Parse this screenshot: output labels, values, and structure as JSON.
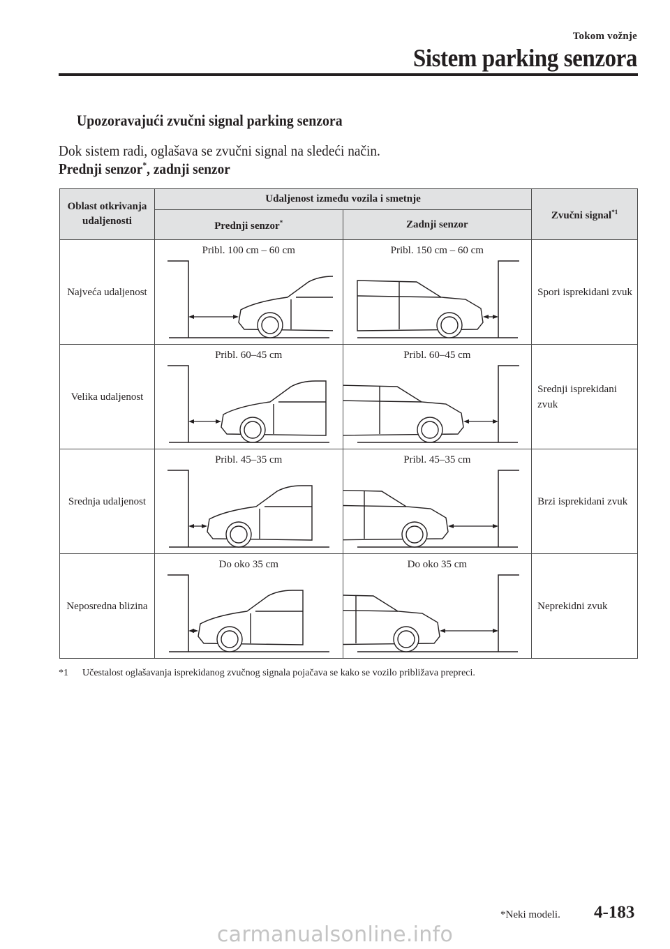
{
  "header": {
    "section": "Tokom vožnje",
    "title": "Sistem parking senzora"
  },
  "subheading": "Upozoravajući zvučni signal parking senzora",
  "intro": "Dok sistem radi, oglašava se zvučni signal na sledeći način.",
  "table_title": {
    "text": "Prednji senzor",
    "mark": "*",
    "rest": ", zadnji senzor"
  },
  "table": {
    "headers": {
      "area": "Oblast otkrivanja udaljenosti",
      "distance": "Udaljenost između vozila i smetnje",
      "front": "Prednji senzor",
      "front_mark": "*",
      "rear": "Zadnji senzor",
      "signal": "Zvučni signal",
      "signal_mark": "*1"
    },
    "rows": [
      {
        "area": "Najveća udaljenost",
        "front": "Pribl. 100 cm – 60 cm",
        "rear": "Pribl. 150 cm – 60 cm",
        "signal": "Spori isprekidani zvuk"
      },
      {
        "area": "Velika udaljenost",
        "front": "Pribl. 60–45 cm",
        "rear": "Pribl. 60–45 cm",
        "signal": "Srednji isprekidani zvuk"
      },
      {
        "area": "Srednja udaljenost",
        "front": "Pribl. 45–35 cm",
        "rear": "Pribl. 45–35 cm",
        "signal": "Brzi isprekidani zvuk"
      },
      {
        "area": "Neposredna blizina",
        "front": "Do oko 35 cm",
        "rear": "Do oko 35 cm",
        "signal": "Neprekidni zvuk"
      }
    ]
  },
  "footnote": {
    "mark": "*1",
    "text": "Učestalost oglašavanja isprekidanog zvučnog signala pojačava se kako se vozilo približava prepreci."
  },
  "footer": {
    "models_note": "*Neki modeli.",
    "page_number": "4-183",
    "watermark": "carmanualsonline.info"
  }
}
